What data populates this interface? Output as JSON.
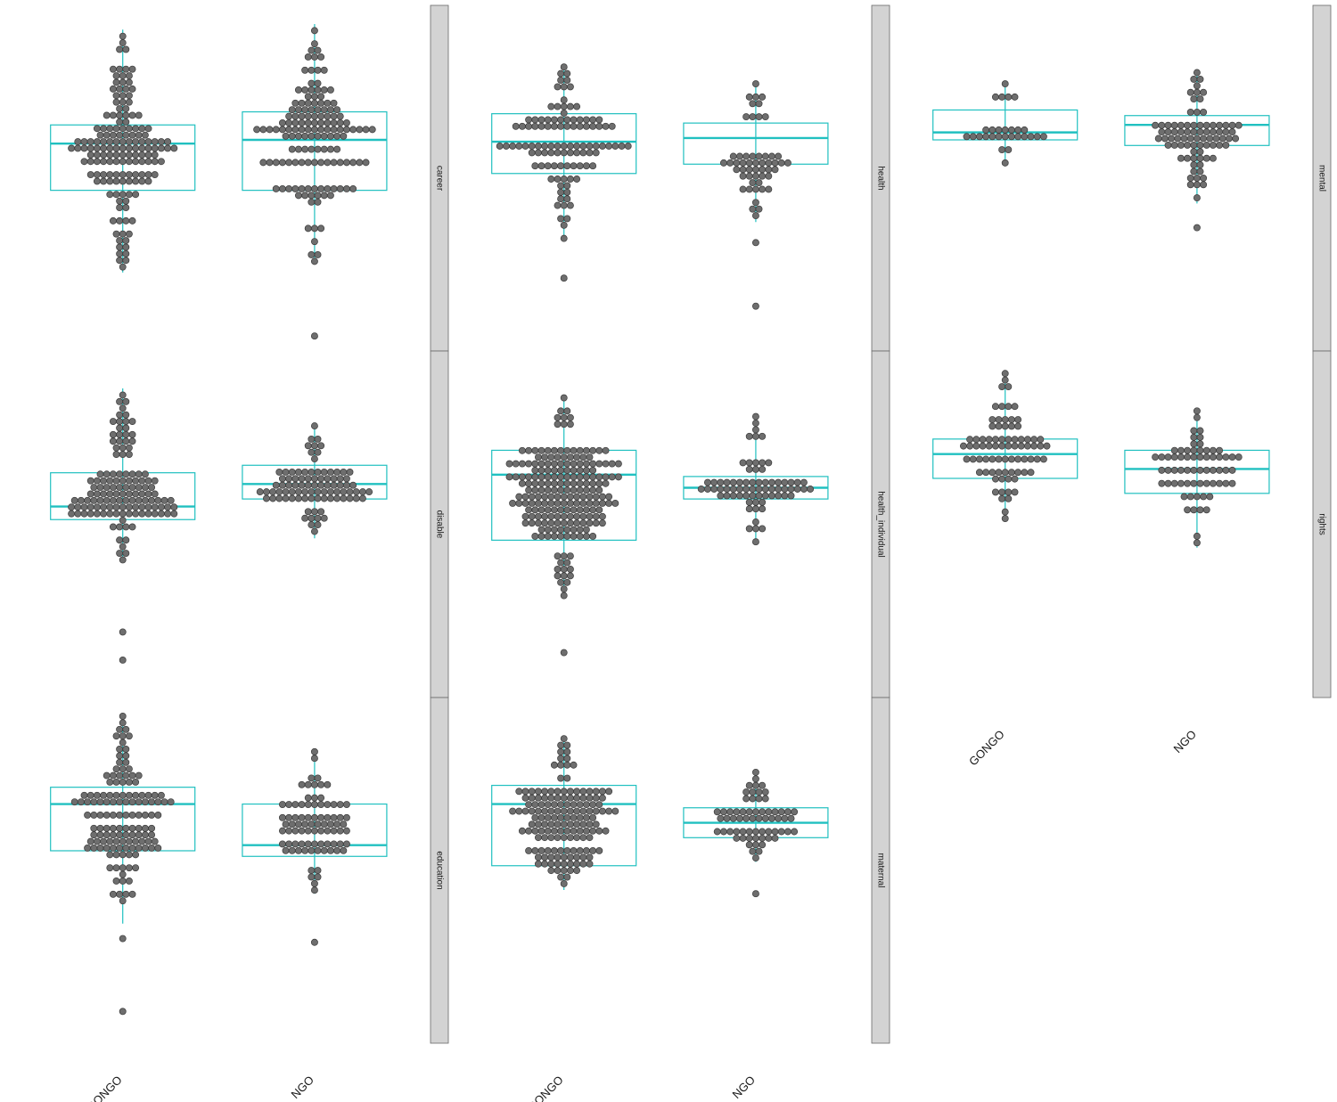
{
  "chart_data": {
    "type": "boxplot",
    "x_categories": [
      "GONGO",
      "NGO"
    ],
    "y_axis_labels_shown": false,
    "grid": false,
    "colors": {
      "box": "#20c0c0",
      "dots": "#6e6e6e",
      "dot_edge": "#3a3a3a",
      "strip": "#d3d3d3"
    },
    "panels": [
      {
        "label": "career",
        "groups": [
          {
            "category": "GONGO",
            "box": {
              "whisker_low": -6.8,
              "q1": -2.4,
              "median": 0.1,
              "q3": 1.1,
              "whisker_high": 6.2
            }
          },
          {
            "category": "NGO",
            "box": {
              "whisker_low": -6.2,
              "q1": -2.4,
              "median": 0.3,
              "q3": 1.8,
              "whisker_high": 6.5
            },
            "outliers": [
              -10.2
            ]
          }
        ]
      },
      {
        "label": "disable",
        "groups": [
          {
            "category": "GONGO",
            "box": {
              "whisker_low": -3.8,
              "q1": -1.5,
              "median": -0.8,
              "q3": 1.0,
              "whisker_high": 5.5
            },
            "outliers": [
              -7.5,
              -9.0
            ]
          },
          {
            "category": "NGO",
            "box": {
              "whisker_low": -2.5,
              "q1": -0.4,
              "median": 0.4,
              "q3": 1.4,
              "whisker_high": 3.5
            }
          }
        ]
      },
      {
        "label": "education",
        "groups": [
          {
            "category": "GONGO",
            "box": {
              "whisker_low": -4.6,
              "q1": -0.7,
              "median": 1.8,
              "q3": 2.7,
              "whisker_high": 6.5
            },
            "outliers": [
              -5.4,
              -9.3
            ]
          },
          {
            "category": "NGO",
            "box": {
              "whisker_low": -3.0,
              "q1": -1.0,
              "median": -0.4,
              "q3": 1.8,
              "whisker_high": 4.6
            },
            "outliers": [
              -5.6
            ]
          }
        ]
      },
      {
        "label": "health",
        "groups": [
          {
            "category": "GONGO",
            "box": {
              "whisker_low": -5.0,
              "q1": -1.5,
              "median": 0.2,
              "q3": 1.7,
              "whisker_high": 4.2
            },
            "outliers": [
              -7.1
            ]
          },
          {
            "category": "NGO",
            "box": {
              "whisker_low": -4.1,
              "q1": -1.0,
              "median": 0.4,
              "q3": 1.2,
              "whisker_high": 3.3
            },
            "outliers": [
              -5.2,
              -8.6
            ]
          }
        ]
      },
      {
        "label": "health_individual",
        "groups": [
          {
            "category": "GONGO",
            "box": {
              "whisker_low": -5.7,
              "q1": -2.6,
              "median": 0.9,
              "q3": 2.2,
              "whisker_high": 5.0
            },
            "outliers": [
              -8.6
            ]
          },
          {
            "category": "NGO",
            "box": {
              "whisker_low": -2.7,
              "q1": -0.4,
              "median": 0.2,
              "q3": 0.8,
              "whisker_high": 4.0
            }
          }
        ]
      },
      {
        "label": "maternal",
        "groups": [
          {
            "category": "GONGO",
            "box": {
              "whisker_low": -2.8,
              "q1": -1.5,
              "median": 1.8,
              "q3": 2.8,
              "whisker_high": 5.3
            }
          },
          {
            "category": "NGO",
            "box": {
              "whisker_low": -1.3,
              "q1": 0.0,
              "median": 0.8,
              "q3": 1.6,
              "whisker_high": 3.5
            },
            "outliers": [
              -3.0
            ]
          }
        ]
      },
      {
        "label": "mental",
        "groups": [
          {
            "category": "GONGO",
            "box": {
              "whisker_low": -1.0,
              "q1": 0.3,
              "median": 0.7,
              "q3": 1.9,
              "whisker_high": 3.3
            }
          },
          {
            "category": "NGO",
            "box": {
              "whisker_low": -3.1,
              "q1": 0.0,
              "median": 1.1,
              "q3": 1.6,
              "whisker_high": 3.9
            },
            "outliers": [
              -4.4
            ]
          }
        ]
      },
      {
        "label": "rights",
        "groups": [
          {
            "category": "GONGO",
            "box": {
              "whisker_low": -1.5,
              "q1": 0.7,
              "median": 2.0,
              "q3": 2.8,
              "whisker_high": 6.3
            }
          },
          {
            "category": "NGO",
            "box": {
              "whisker_low": -3.0,
              "q1": -0.1,
              "median": 1.2,
              "q3": 2.2,
              "whisker_high": 4.3
            }
          }
        ]
      }
    ]
  }
}
